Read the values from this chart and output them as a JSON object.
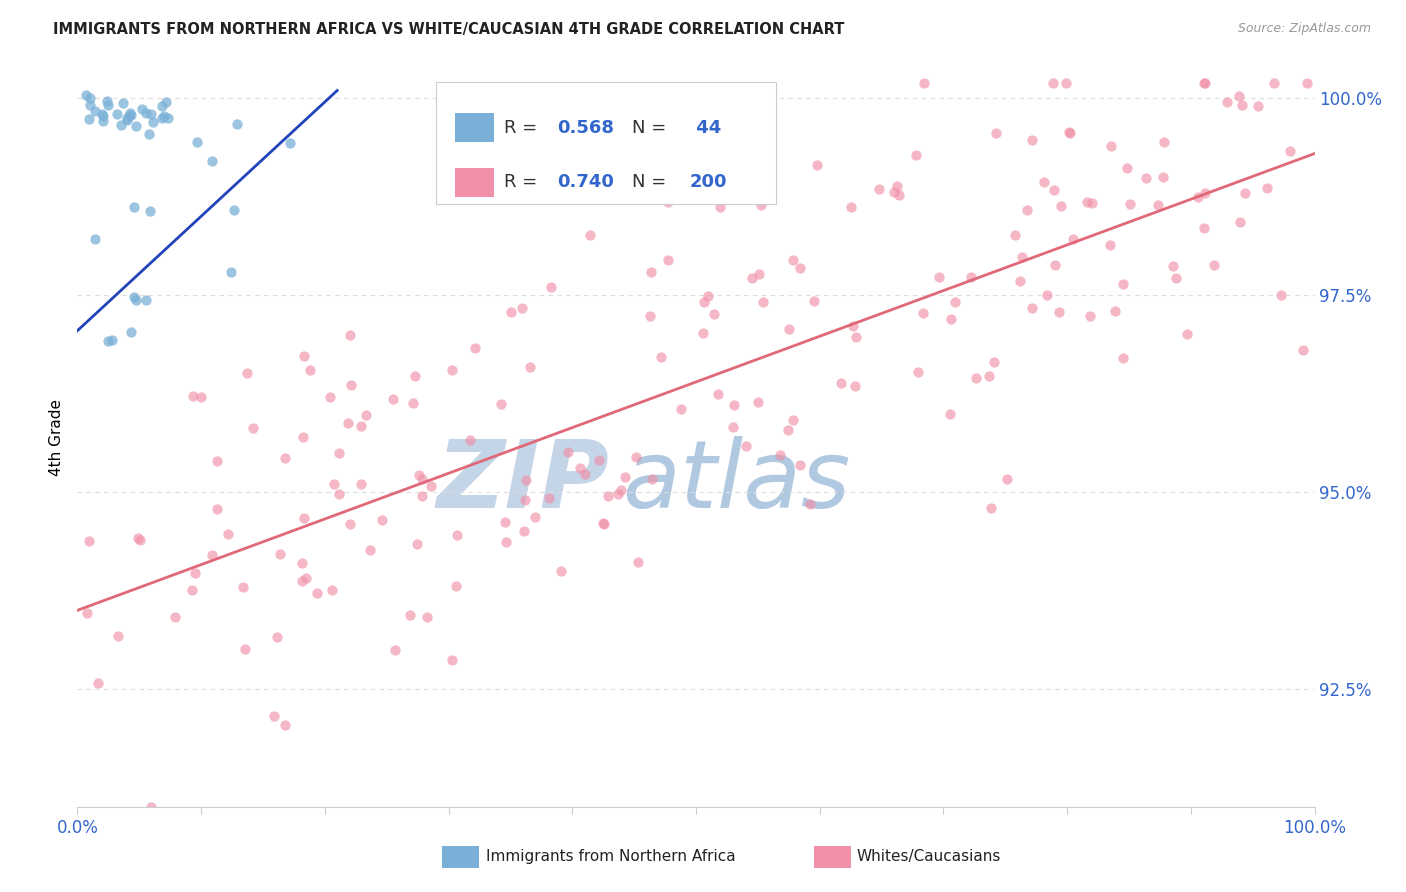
{
  "title": "IMMIGRANTS FROM NORTHERN AFRICA VS WHITE/CAUCASIAN 4TH GRADE CORRELATION CHART",
  "source": "Source: ZipAtlas.com",
  "ylabel": "4th Grade",
  "yticks": [
    "92.5%",
    "95.0%",
    "97.5%",
    "100.0%"
  ],
  "ytick_vals": [
    0.925,
    0.95,
    0.975,
    1.0
  ],
  "xrange": [
    0.0,
    1.0
  ],
  "yrange": [
    0.91,
    1.004
  ],
  "blue_line_x": [
    0.0,
    0.21
  ],
  "blue_line_y": [
    0.9705,
    1.001
  ],
  "pink_line_x": [
    0.0,
    1.0
  ],
  "pink_line_y": [
    0.935,
    0.993
  ],
  "scatter_dot_size": 55,
  "title_color": "#222222",
  "source_color": "#999999",
  "tick_label_color": "#3366cc",
  "grid_color": "#dddddd",
  "blue_color": "#7ab0d8",
  "pink_color": "#f090a8",
  "blue_line_color": "#2244bb",
  "pink_line_color": "#e06878",
  "watermark_zip_color": "#c5d5e8",
  "watermark_atlas_color": "#b0c8e0",
  "legend_border_color": "#cccccc",
  "legend_r_color": "#333333",
  "legend_val_color": "#3366cc",
  "bottom_legend_text_color": "#222222"
}
